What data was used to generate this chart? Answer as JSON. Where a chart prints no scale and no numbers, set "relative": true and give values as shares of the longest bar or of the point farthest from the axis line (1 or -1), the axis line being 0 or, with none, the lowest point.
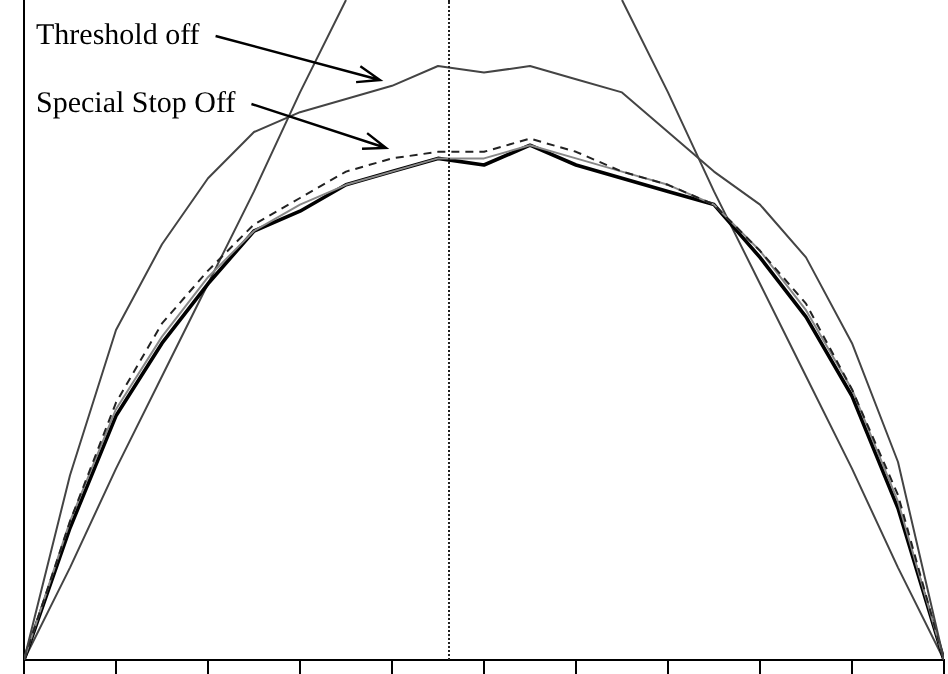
{
  "chart_data": {
    "type": "line",
    "relative": true,
    "categories": [
      null,
      null,
      null,
      null,
      null,
      null,
      null,
      null,
      null,
      null,
      null,
      null,
      null,
      null,
      null,
      null,
      null,
      null,
      null,
      null,
      null
    ],
    "grid": false,
    "legend": false,
    "marker": "none",
    "series": [
      {
        "color": "#444444",
        "values": [
          0,
          0.28,
          0.5,
          0.63,
          0.73,
          0.8,
          0.83,
          0.85,
          0.87,
          0.9,
          0.89,
          0.9,
          0.88,
          0.86,
          0.8,
          0.74,
          0.69,
          0.61,
          0.48,
          0.3,
          0
        ]
      },
      {
        "color": "#222222",
        "line_style": "dashed",
        "values": [
          0,
          0.21,
          0.39,
          0.51,
          0.59,
          0.66,
          0.7,
          0.74,
          0.76,
          0.77,
          0.77,
          0.79,
          0.77,
          0.74,
          0.72,
          0.69,
          0.62,
          0.54,
          0.41,
          0.25,
          0
        ]
      },
      {
        "color": "#888888",
        "values": [
          0,
          0.21,
          0.38,
          0.49,
          0.58,
          0.65,
          0.69,
          0.72,
          0.74,
          0.76,
          0.76,
          0.78,
          0.76,
          0.74,
          0.72,
          0.69,
          0.62,
          0.53,
          0.41,
          0.24,
          0
        ]
      },
      {
        "color": "#000000",
        "values": [
          0,
          0.2,
          0.37,
          0.48,
          0.57,
          0.65,
          0.68,
          0.72,
          0.74,
          0.76,
          0.75,
          0.78,
          0.75,
          0.73,
          0.71,
          0.69,
          0.61,
          0.52,
          0.4,
          0.23,
          0
        ]
      },
      {
        "color": "#444444",
        "values": [
          0,
          0.14,
          0.29,
          0.43,
          0.57,
          0.71,
          0.86,
          1,
          null,
          null,
          null,
          null,
          null,
          null,
          null,
          null,
          null,
          null,
          null,
          null,
          null
        ]
      },
      {
        "color": "#444444",
        "values": [
          null,
          null,
          null,
          null,
          null,
          null,
          null,
          null,
          null,
          null,
          null,
          null,
          null,
          1,
          0.86,
          0.71,
          0.57,
          0.43,
          0.29,
          0.14,
          0
        ]
      }
    ],
    "annotations": [
      "Threshold off",
      "Special Stop Off"
    ]
  }
}
